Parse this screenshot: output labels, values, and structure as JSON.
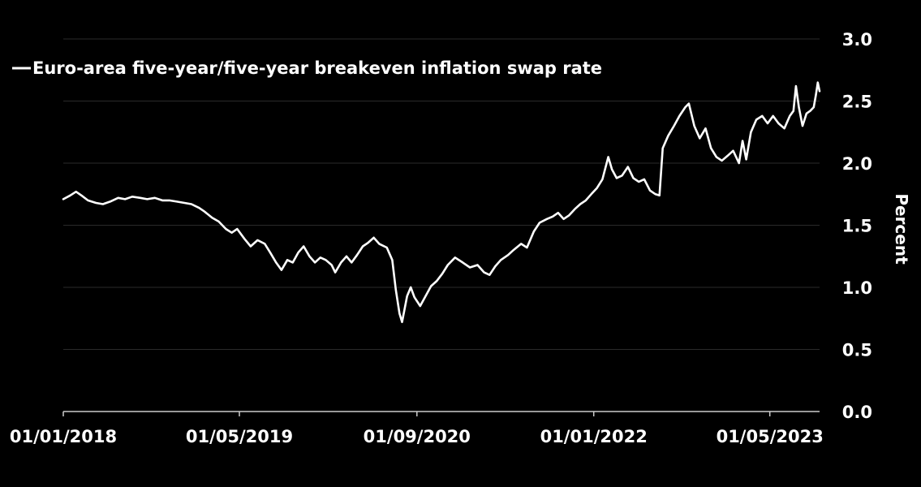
{
  "chart_data": {
    "type": "line",
    "ylabel": "Percent",
    "ylim": [
      0,
      3
    ],
    "y_ticks": [
      {
        "value": 0,
        "label": "0.0"
      },
      {
        "value": 0.5,
        "label": "0.5"
      },
      {
        "value": 1,
        "label": "1.0"
      },
      {
        "value": 1.5,
        "label": "1.5"
      },
      {
        "value": 2,
        "label": "2.0"
      },
      {
        "value": 2.5,
        "label": "2.5"
      },
      {
        "value": 3,
        "label": "3.0"
      }
    ],
    "x_range": [
      "2018-01-01",
      "2023-09-15"
    ],
    "x_ticks": [
      {
        "date": "2018-01-01",
        "label": "01/01/2018"
      },
      {
        "date": "2019-05-01",
        "label": "01/05/2019"
      },
      {
        "date": "2020-09-01",
        "label": "01/09/2020"
      },
      {
        "date": "2022-01-01",
        "label": "01/01/2022"
      },
      {
        "date": "2023-05-01",
        "label": "01/05/2023"
      }
    ],
    "grid": true,
    "legend_position": "top-left",
    "colors": {
      "background": "#000000",
      "line": "#ffffff",
      "grid": "#2a2a2a",
      "text": "#ffffff"
    },
    "series": [
      {
        "name": "Euro-area five-year/five-year breakeven inflation swap rate",
        "points": [
          [
            "2018-01-01",
            1.71
          ],
          [
            "2018-01-20",
            1.74
          ],
          [
            "2018-02-05",
            1.77
          ],
          [
            "2018-02-20",
            1.74
          ],
          [
            "2018-03-10",
            1.7
          ],
          [
            "2018-04-01",
            1.68
          ],
          [
            "2018-04-20",
            1.67
          ],
          [
            "2018-05-10",
            1.69
          ],
          [
            "2018-06-01",
            1.72
          ],
          [
            "2018-06-20",
            1.71
          ],
          [
            "2018-07-10",
            1.73
          ],
          [
            "2018-08-01",
            1.72
          ],
          [
            "2018-08-20",
            1.71
          ],
          [
            "2018-09-10",
            1.72
          ],
          [
            "2018-10-01",
            1.7
          ],
          [
            "2018-10-20",
            1.7
          ],
          [
            "2018-11-10",
            1.69
          ],
          [
            "2018-12-01",
            1.68
          ],
          [
            "2018-12-20",
            1.67
          ],
          [
            "2019-01-10",
            1.64
          ],
          [
            "2019-01-25",
            1.61
          ],
          [
            "2019-02-15",
            1.56
          ],
          [
            "2019-03-05",
            1.53
          ],
          [
            "2019-03-25",
            1.47
          ],
          [
            "2019-04-10",
            1.44
          ],
          [
            "2019-04-25",
            1.47
          ],
          [
            "2019-05-15",
            1.39
          ],
          [
            "2019-06-01",
            1.33
          ],
          [
            "2019-06-20",
            1.38
          ],
          [
            "2019-07-10",
            1.35
          ],
          [
            "2019-07-25",
            1.28
          ],
          [
            "2019-08-10",
            1.2
          ],
          [
            "2019-08-25",
            1.14
          ],
          [
            "2019-09-10",
            1.22
          ],
          [
            "2019-09-25",
            1.2
          ],
          [
            "2019-10-10",
            1.28
          ],
          [
            "2019-10-25",
            1.33
          ],
          [
            "2019-11-10",
            1.25
          ],
          [
            "2019-11-25",
            1.2
          ],
          [
            "2019-12-10",
            1.24
          ],
          [
            "2019-12-25",
            1.22
          ],
          [
            "2020-01-10",
            1.18
          ],
          [
            "2020-01-20",
            1.12
          ],
          [
            "2020-02-05",
            1.2
          ],
          [
            "2020-02-20",
            1.25
          ],
          [
            "2020-03-05",
            1.2
          ],
          [
            "2020-03-20",
            1.26
          ],
          [
            "2020-04-05",
            1.33
          ],
          [
            "2020-04-20",
            1.36
          ],
          [
            "2020-05-05",
            1.4
          ],
          [
            "2020-05-20",
            1.35
          ],
          [
            "2020-06-10",
            1.32
          ],
          [
            "2020-06-25",
            1.22
          ],
          [
            "2020-07-05",
            0.98
          ],
          [
            "2020-07-15",
            0.79
          ],
          [
            "2020-07-22",
            0.72
          ],
          [
            "2020-08-05",
            0.93
          ],
          [
            "2020-08-15",
            1.0
          ],
          [
            "2020-08-25",
            0.92
          ],
          [
            "2020-09-10",
            0.85
          ],
          [
            "2020-09-25",
            0.93
          ],
          [
            "2020-10-10",
            1.01
          ],
          [
            "2020-10-25",
            1.05
          ],
          [
            "2020-11-10",
            1.11
          ],
          [
            "2020-11-25",
            1.18
          ],
          [
            "2020-12-15",
            1.24
          ],
          [
            "2021-01-05",
            1.2
          ],
          [
            "2021-01-25",
            1.16
          ],
          [
            "2021-02-15",
            1.18
          ],
          [
            "2021-03-05",
            1.12
          ],
          [
            "2021-03-20",
            1.1
          ],
          [
            "2021-04-05",
            1.17
          ],
          [
            "2021-04-20",
            1.22
          ],
          [
            "2021-05-10",
            1.26
          ],
          [
            "2021-05-25",
            1.3
          ],
          [
            "2021-06-15",
            1.35
          ],
          [
            "2021-07-01",
            1.32
          ],
          [
            "2021-07-20",
            1.45
          ],
          [
            "2021-08-05",
            1.52
          ],
          [
            "2021-08-25",
            1.55
          ],
          [
            "2021-09-10",
            1.57
          ],
          [
            "2021-09-25",
            1.6
          ],
          [
            "2021-10-10",
            1.55
          ],
          [
            "2021-10-25",
            1.58
          ],
          [
            "2021-11-10",
            1.63
          ],
          [
            "2021-11-25",
            1.67
          ],
          [
            "2021-12-10",
            1.7
          ],
          [
            "2021-12-25",
            1.75
          ],
          [
            "2022-01-10",
            1.8
          ],
          [
            "2022-01-25",
            1.87
          ],
          [
            "2022-02-10",
            2.05
          ],
          [
            "2022-02-20",
            1.95
          ],
          [
            "2022-03-05",
            1.88
          ],
          [
            "2022-03-20",
            1.9
          ],
          [
            "2022-04-05",
            1.97
          ],
          [
            "2022-04-20",
            1.88
          ],
          [
            "2022-05-05",
            1.85
          ],
          [
            "2022-05-20",
            1.87
          ],
          [
            "2022-06-05",
            1.78
          ],
          [
            "2022-06-20",
            1.75
          ],
          [
            "2022-07-01",
            1.74
          ],
          [
            "2022-07-10",
            2.12
          ],
          [
            "2022-07-25",
            2.22
          ],
          [
            "2022-08-10",
            2.3
          ],
          [
            "2022-08-25",
            2.38
          ],
          [
            "2022-09-10",
            2.45
          ],
          [
            "2022-09-20",
            2.48
          ],
          [
            "2022-10-05",
            2.3
          ],
          [
            "2022-10-20",
            2.2
          ],
          [
            "2022-11-05",
            2.28
          ],
          [
            "2022-11-20",
            2.12
          ],
          [
            "2022-12-05",
            2.05
          ],
          [
            "2022-12-20",
            2.02
          ],
          [
            "2023-01-05",
            2.06
          ],
          [
            "2023-01-20",
            2.1
          ],
          [
            "2023-02-05",
            2.0
          ],
          [
            "2023-02-15",
            2.18
          ],
          [
            "2023-02-25",
            2.03
          ],
          [
            "2023-03-10",
            2.25
          ],
          [
            "2023-03-25",
            2.35
          ],
          [
            "2023-04-10",
            2.38
          ],
          [
            "2023-04-25",
            2.32
          ],
          [
            "2023-05-10",
            2.38
          ],
          [
            "2023-05-25",
            2.32
          ],
          [
            "2023-06-10",
            2.28
          ],
          [
            "2023-06-25",
            2.38
          ],
          [
            "2023-07-05",
            2.42
          ],
          [
            "2023-07-12",
            2.62
          ],
          [
            "2023-07-20",
            2.45
          ],
          [
            "2023-07-30",
            2.3
          ],
          [
            "2023-08-10",
            2.4
          ],
          [
            "2023-08-20",
            2.42
          ],
          [
            "2023-08-30",
            2.45
          ],
          [
            "2023-09-05",
            2.55
          ],
          [
            "2023-09-10",
            2.65
          ],
          [
            "2023-09-15",
            2.58
          ]
        ]
      }
    ]
  }
}
